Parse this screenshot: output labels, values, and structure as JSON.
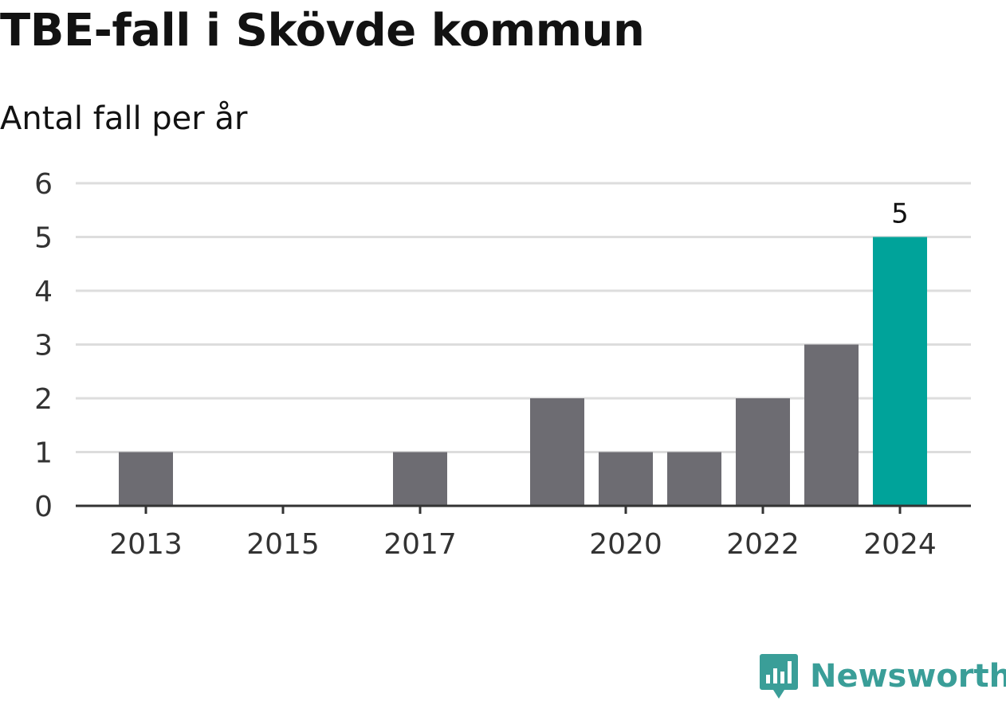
{
  "title": "TBE-fall i Skövde kommun",
  "subtitle": "Antal fall per år",
  "brand": {
    "name": "Newsworthy",
    "icon": "newsworthy-chart-bubble-icon",
    "color": "#3a9e98"
  },
  "chart_data": {
    "type": "bar",
    "x": [
      2013,
      2014,
      2015,
      2016,
      2017,
      2018,
      2019,
      2020,
      2021,
      2022,
      2023,
      2024
    ],
    "values": [
      1,
      0,
      0,
      0,
      1,
      0,
      2,
      1,
      1,
      2,
      3,
      5
    ],
    "x_tick_labels": [
      "2013",
      "2015",
      "2017",
      "2020",
      "2022",
      "2024"
    ],
    "y_ticks": [
      0,
      1,
      2,
      3,
      4,
      5,
      6
    ],
    "ylim": [
      0,
      6
    ],
    "grid": true,
    "colors": {
      "bar": "#6d6c72",
      "highlight": "#00a39a",
      "grid": "#dddddd",
      "axis": "#333333"
    },
    "highlight": {
      "x": 2024,
      "label": "5"
    }
  }
}
